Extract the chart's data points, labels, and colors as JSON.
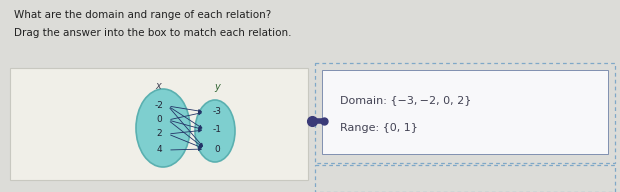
{
  "title_line1": "What are the domain and range of each relation?",
  "title_line2": "Drag the answer into the box to match each relation.",
  "bg_color": "#dcdcd8",
  "left_panel_bg": "#f0efe8",
  "left_panel_edge": "#c8c8c0",
  "ellipse_fill": "#7ecfcf",
  "ellipse_edge": "#5ab0b0",
  "x_label": "x",
  "y_label": "y",
  "x_values": [
    "-2",
    "0",
    "2",
    "4"
  ],
  "y_values": [
    "-3",
    "-1",
    "0"
  ],
  "arrows": [
    [
      0,
      0
    ],
    [
      0,
      1
    ],
    [
      0,
      2
    ],
    [
      1,
      0
    ],
    [
      1,
      1
    ],
    [
      1,
      2
    ],
    [
      2,
      1
    ],
    [
      2,
      2
    ],
    [
      3,
      2
    ]
  ],
  "connector_color": "#3a3a78",
  "outer_dash_color": "#7fa8c8",
  "inner_box_fill": "#f8f8fa",
  "inner_box_edge": "#8090b0",
  "domain_text": "Domain: {−3, −2, 0, 2}",
  "range_text": "Range: {0, 1}",
  "text_color": "#444455",
  "arrow_color": "#223366",
  "label_color_x": "#444455",
  "label_color_y": "#336633"
}
